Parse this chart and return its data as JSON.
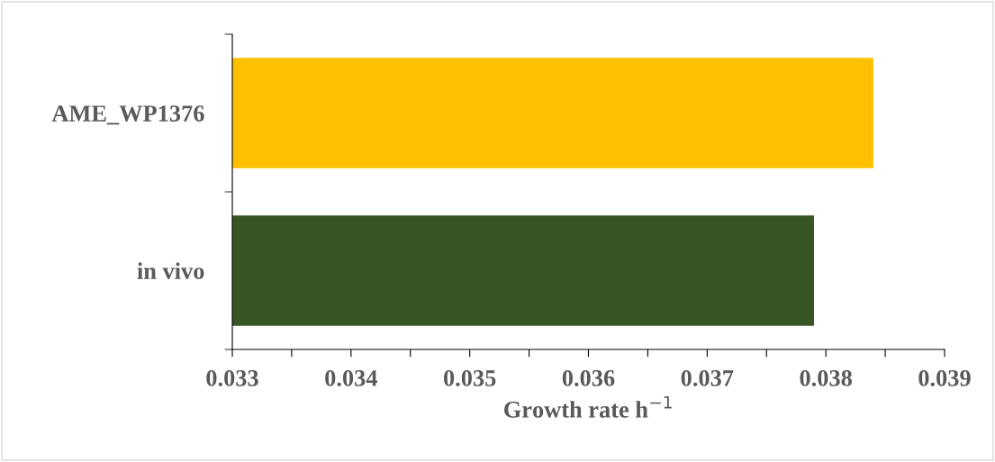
{
  "chart_data": {
    "type": "bar",
    "orientation": "horizontal",
    "categories": [
      "AME_WP1376",
      "in vivo"
    ],
    "values": [
      0.0384,
      0.0379
    ],
    "colors": [
      "#ffc000",
      "#375623"
    ],
    "xlabel": "Growth rate h$^{−1}$",
    "xlim": [
      0.033,
      0.039
    ],
    "xticks": [
      {
        "value": 0.033,
        "label": "0.033"
      },
      {
        "value": 0.0335,
        "label": null
      },
      {
        "value": 0.034,
        "label": "0.034"
      },
      {
        "value": 0.0345,
        "label": null
      },
      {
        "value": 0.035,
        "label": "0.035"
      },
      {
        "value": 0.0355,
        "label": null
      },
      {
        "value": 0.036,
        "label": "0.036"
      },
      {
        "value": 0.0365,
        "label": null
      },
      {
        "value": 0.037,
        "label": "0.037"
      },
      {
        "value": 0.0375,
        "label": null
      },
      {
        "value": 0.038,
        "label": "0.038"
      },
      {
        "value": 0.0385,
        "label": null
      },
      {
        "value": 0.039,
        "label": "0.039"
      }
    ],
    "grid": false,
    "legend": false
  }
}
